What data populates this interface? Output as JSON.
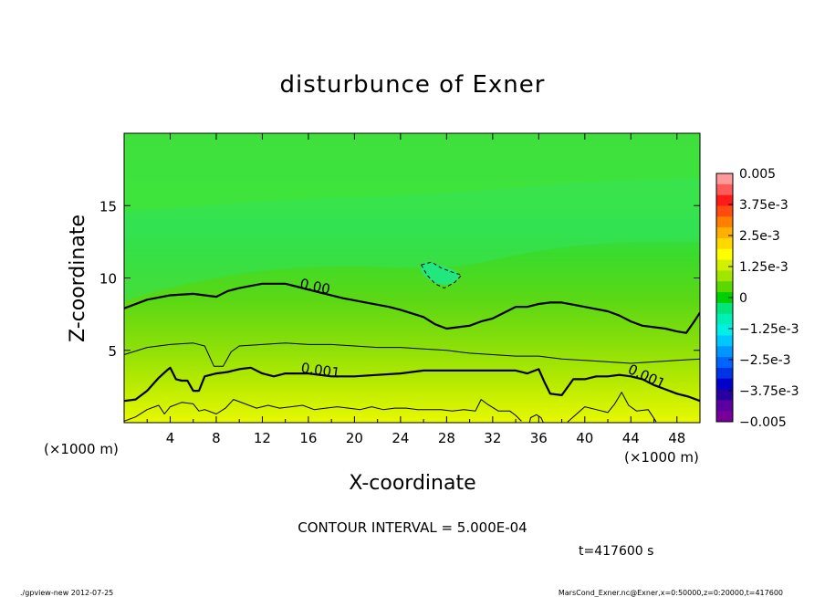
{
  "chart_data": {
    "type": "contour",
    "title": "disturbunce of Exner",
    "xlabel": "X-coordinate",
    "ylabel": "Z-coordinate",
    "x_unit_label": "(×1000 m)",
    "y_unit_label": "(×1000 m)",
    "xlim": [
      0,
      50
    ],
    "ylim": [
      0,
      20
    ],
    "xticks": [
      4,
      8,
      12,
      16,
      20,
      24,
      28,
      32,
      36,
      40,
      44,
      48
    ],
    "yticks": [
      5,
      10,
      15
    ],
    "contour_interval_label": "CONTOUR INTERVAL = 5.000E-04",
    "time_label": "t=417600 s",
    "colorbar": {
      "range": [
        -0.005,
        0.005
      ],
      "tick_labels": [
        "0.005",
        "3.75e-3",
        "2.5e-3",
        "1.25e-3",
        "0",
        "−1.25e-3",
        "−2.5e-3",
        "−3.75e-3",
        "−0.005"
      ],
      "colors": [
        "#ff9a9a",
        "#ff5a5a",
        "#ff1a1a",
        "#ff4a10",
        "#ff7f00",
        "#ffb000",
        "#ffd800",
        "#ffff00",
        "#d2f000",
        "#a0e600",
        "#5ad800",
        "#00d000",
        "#00e67a",
        "#00f0b4",
        "#00f0e6",
        "#00c8ff",
        "#0096ff",
        "#0064ff",
        "#0032e6",
        "#0000c8",
        "#2800a0",
        "#5a00a0",
        "#78009a"
      ]
    },
    "contour_labels": [
      {
        "text": "0.00",
        "x": 16.5,
        "z": 9.1,
        "angle": 12
      },
      {
        "text": "0.001",
        "x": 17.0,
        "z": 3.3,
        "angle": 8
      },
      {
        "text": "0.001",
        "x": 45.2,
        "z": 2.9,
        "angle": 25
      }
    ],
    "contours": [
      {
        "level": "0 (bold)",
        "style": "bold",
        "points": [
          [
            0,
            7.9
          ],
          [
            2,
            8.5
          ],
          [
            4,
            8.8
          ],
          [
            6,
            8.9
          ],
          [
            8,
            8.7
          ],
          [
            9,
            9.1
          ],
          [
            10,
            9.3
          ],
          [
            12,
            9.6
          ],
          [
            14,
            9.6
          ],
          [
            15,
            9.4
          ],
          [
            17,
            9.0
          ],
          [
            19,
            8.6
          ],
          [
            21,
            8.3
          ],
          [
            23,
            8.0
          ],
          [
            24,
            7.8
          ],
          [
            26,
            7.3
          ],
          [
            27,
            6.8
          ],
          [
            28,
            6.5
          ],
          [
            30,
            6.7
          ],
          [
            31,
            7.0
          ],
          [
            32,
            7.2
          ],
          [
            33,
            7.6
          ],
          [
            34,
            8.0
          ],
          [
            35,
            8.0
          ],
          [
            36,
            8.2
          ],
          [
            37,
            8.3
          ],
          [
            38,
            8.3
          ],
          [
            40,
            8.0
          ],
          [
            42,
            7.7
          ],
          [
            43,
            7.4
          ],
          [
            44,
            7.0
          ],
          [
            45,
            6.7
          ],
          [
            46,
            6.6
          ],
          [
            47,
            6.5
          ],
          [
            48,
            6.3
          ],
          [
            48.8,
            6.2
          ],
          [
            49.5,
            7.0
          ],
          [
            50,
            7.6
          ]
        ]
      },
      {
        "level": "5.000E-04",
        "style": "thin",
        "points": [
          [
            0,
            4.7
          ],
          [
            2,
            5.2
          ],
          [
            4,
            5.4
          ],
          [
            6,
            5.5
          ],
          [
            7,
            5.3
          ],
          [
            7.8,
            3.9
          ],
          [
            8.6,
            3.9
          ],
          [
            9.3,
            4.9
          ],
          [
            10,
            5.3
          ],
          [
            12,
            5.4
          ],
          [
            14,
            5.5
          ],
          [
            16,
            5.4
          ],
          [
            18,
            5.4
          ],
          [
            20,
            5.3
          ],
          [
            22,
            5.2
          ],
          [
            24,
            5.2
          ],
          [
            26,
            5.1
          ],
          [
            28,
            5.0
          ],
          [
            30,
            4.8
          ],
          [
            32,
            4.7
          ],
          [
            34,
            4.6
          ],
          [
            36,
            4.6
          ],
          [
            38,
            4.4
          ],
          [
            40,
            4.3
          ],
          [
            42,
            4.2
          ],
          [
            44,
            4.1
          ],
          [
            46,
            4.2
          ],
          [
            48,
            4.3
          ],
          [
            50,
            4.4
          ]
        ]
      },
      {
        "level": "0.001 (bold)",
        "style": "bold",
        "points": [
          [
            0,
            1.5
          ],
          [
            1,
            1.6
          ],
          [
            2,
            2.2
          ],
          [
            3,
            3.1
          ],
          [
            3.7,
            3.6
          ],
          [
            4,
            3.8
          ],
          [
            4.5,
            3.0
          ],
          [
            5,
            2.9
          ],
          [
            5.5,
            2.9
          ],
          [
            6,
            2.2
          ],
          [
            6.5,
            2.2
          ],
          [
            7,
            3.2
          ],
          [
            8,
            3.4
          ],
          [
            9,
            3.5
          ],
          [
            10,
            3.7
          ],
          [
            11,
            3.8
          ],
          [
            12,
            3.4
          ],
          [
            13,
            3.2
          ],
          [
            14,
            3.4
          ],
          [
            16,
            3.4
          ],
          [
            18,
            3.2
          ],
          [
            20,
            3.2
          ],
          [
            22,
            3.3
          ],
          [
            24,
            3.4
          ],
          [
            26,
            3.6
          ],
          [
            28,
            3.6
          ],
          [
            30,
            3.6
          ],
          [
            32,
            3.6
          ],
          [
            34,
            3.6
          ],
          [
            35,
            3.4
          ],
          [
            36,
            3.7
          ],
          [
            36.5,
            2.8
          ],
          [
            37,
            2.0
          ],
          [
            38,
            1.9
          ],
          [
            39,
            3.0
          ],
          [
            40,
            3.0
          ],
          [
            41,
            3.2
          ],
          [
            42,
            3.2
          ],
          [
            43,
            3.3
          ],
          [
            44,
            3.2
          ],
          [
            45,
            3.0
          ],
          [
            46,
            2.6
          ],
          [
            47,
            2.3
          ],
          [
            48,
            2.0
          ],
          [
            49,
            1.8
          ],
          [
            50,
            1.5
          ]
        ]
      },
      {
        "level": "1.500E-03",
        "style": "thin",
        "points": [
          [
            0,
            0.1
          ],
          [
            1,
            0.4
          ],
          [
            2,
            0.9
          ],
          [
            3,
            1.2
          ],
          [
            3.5,
            0.6
          ],
          [
            4,
            1.1
          ],
          [
            5,
            1.4
          ],
          [
            6,
            1.3
          ],
          [
            6.5,
            0.8
          ],
          [
            7,
            0.9
          ],
          [
            8,
            0.6
          ],
          [
            8.8,
            1.0
          ],
          [
            9.5,
            1.6
          ],
          [
            10.5,
            1.3
          ],
          [
            11.5,
            1.0
          ],
          [
            12.5,
            1.2
          ],
          [
            13.5,
            1.0
          ],
          [
            14.5,
            1.1
          ],
          [
            15.5,
            1.2
          ],
          [
            16.5,
            0.9
          ],
          [
            17.5,
            1.0
          ],
          [
            18.5,
            1.1
          ],
          [
            19.5,
            1.0
          ],
          [
            20.5,
            0.9
          ],
          [
            21.5,
            1.1
          ],
          [
            22.5,
            0.9
          ],
          [
            23.5,
            1.0
          ],
          [
            24.5,
            1.0
          ],
          [
            25.5,
            0.9
          ],
          [
            26.5,
            0.9
          ],
          [
            27.5,
            0.9
          ],
          [
            28.5,
            0.8
          ],
          [
            29.5,
            0.9
          ],
          [
            30.5,
            0.8
          ],
          [
            31,
            1.6
          ],
          [
            31.5,
            1.3
          ],
          [
            32.5,
            0.8
          ],
          [
            33.5,
            0.8
          ],
          [
            34,
            0.5
          ],
          [
            34.5,
            0.1
          ]
        ]
      },
      {
        "level": "1.500E-03",
        "style": "thin",
        "points": [
          [
            38.5,
            0.05
          ],
          [
            39,
            0.4
          ],
          [
            40,
            1.1
          ],
          [
            41,
            0.9
          ],
          [
            42,
            0.7
          ],
          [
            42.6,
            1.3
          ],
          [
            43.2,
            2.1
          ],
          [
            43.8,
            1.2
          ],
          [
            44.5,
            0.8
          ],
          [
            45.5,
            0.9
          ],
          [
            46,
            0.3
          ],
          [
            46.2,
            0.05
          ]
        ]
      },
      {
        "level": "-5.000E-04 (dashed)",
        "style": "dashed",
        "closed": true,
        "points": [
          [
            25.8,
            10.9
          ],
          [
            26.7,
            11.1
          ],
          [
            27.5,
            10.7
          ],
          [
            28.5,
            10.4
          ],
          [
            29.3,
            10.2
          ],
          [
            28.7,
            9.7
          ],
          [
            27.8,
            9.3
          ],
          [
            27.0,
            9.6
          ],
          [
            26.3,
            10.2
          ]
        ]
      },
      {
        "level": "1.500E-03 (closed)",
        "style": "thin",
        "closed": true,
        "points": [
          [
            35.2,
            0.0
          ],
          [
            35.3,
            0.35
          ],
          [
            35.8,
            0.55
          ],
          [
            36.2,
            0.35
          ],
          [
            36.4,
            0.0
          ]
        ]
      }
    ]
  },
  "footer": {
    "left": "./gpview-new  2012-07-25",
    "right": "MarsCond_Exner.nc@Exner,x=0:50000,z=0:20000,t=417600"
  }
}
